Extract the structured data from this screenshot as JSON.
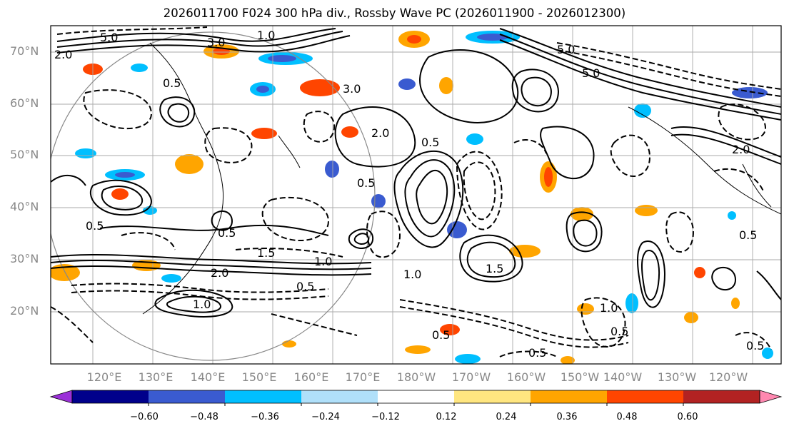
{
  "title": "2026011700 F024 300 hPa div., Rossby Wave PC (2026011900 - 2026012300)",
  "lat_labels": [
    "70°N",
    "60°N",
    "50°N",
    "40°N",
    "30°N",
    "20°N"
  ],
  "lon_labels": [
    "120°E",
    "130°E",
    "140°E",
    "150°E",
    "160°E",
    "170°E",
    "180°W",
    "170°W",
    "160°W",
    "150°W",
    "140°W",
    "130°W",
    "120°W"
  ],
  "colorbar": {
    "colors": [
      "#9b30d8",
      "#00008b",
      "#3a5bd0",
      "#00bfff",
      "#b0e0fa",
      "#ffffff",
      "#ffe680",
      "#ffa500",
      "#ff4500",
      "#b22222",
      "#ff88b0"
    ],
    "tick_labels": [
      "−0.60",
      "−0.48",
      "−0.36",
      "−0.24",
      "−0.12",
      "0.12",
      "0.24",
      "0.36",
      "0.48",
      "0.60"
    ]
  },
  "contour_labels": [
    "5.0",
    "2.0",
    "0.5",
    "2.0",
    "0.5",
    "3.0",
    "1.0",
    "3.0",
    "5.0",
    "5.0",
    "0.5",
    "1.5",
    "2.0",
    "0.5",
    "0.5",
    "2.0",
    "0.5",
    "1.5",
    "1.0",
    "0.5",
    "1.0",
    "0.5",
    "0.5",
    "1.0",
    "0.5",
    "0.5",
    "1.0"
  ]
}
